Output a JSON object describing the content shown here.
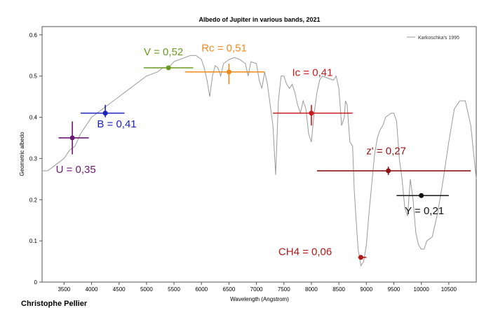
{
  "chart_data": {
    "type": "line",
    "title": "Albedo of Jupiter in various bands, 2021",
    "xlabel": "Wavelength (Angstrom)",
    "ylabel": "Geometric albedo",
    "xlim": [
      3100,
      11000
    ],
    "ylim": [
      0,
      0.62
    ],
    "xticks": [
      3500,
      4000,
      4500,
      5000,
      5500,
      6000,
      6500,
      7000,
      7500,
      8000,
      8500,
      9000,
      9500,
      10000,
      10500
    ],
    "yticks": [
      0,
      0.1,
      0.2,
      0.3,
      0.4,
      0.5,
      0.6
    ],
    "grid": false,
    "legend_position": "top-right",
    "series": [
      {
        "name": "Karkoschka's 1995",
        "color": "#9a9a9a",
        "x": [
          3100,
          3200,
          3300,
          3400,
          3500,
          3600,
          3700,
          3800,
          3900,
          4000,
          4100,
          4200,
          4300,
          4400,
          4500,
          4600,
          4700,
          4800,
          4900,
          5000,
          5100,
          5200,
          5300,
          5400,
          5500,
          5600,
          5700,
          5800,
          5900,
          6000,
          6050,
          6100,
          6150,
          6200,
          6250,
          6300,
          6350,
          6400,
          6500,
          6600,
          6700,
          6800,
          6850,
          6900,
          7000,
          7050,
          7100,
          7150,
          7200,
          7250,
          7300,
          7350,
          7400,
          7450,
          7500,
          7550,
          7600,
          7650,
          7700,
          7750,
          7800,
          7850,
          7900,
          7950,
          8000,
          8050,
          8100,
          8150,
          8200,
          8300,
          8400,
          8450,
          8500,
          8550,
          8600,
          8620,
          8650,
          8700,
          8750,
          8780,
          8800,
          8850,
          8900,
          8950,
          9000,
          9050,
          9100,
          9150,
          9200,
          9250,
          9300,
          9350,
          9400,
          9450,
          9500,
          9550,
          9600,
          9650,
          9700,
          9750,
          9800,
          9850,
          9900,
          9950,
          10000,
          10050,
          10100,
          10200,
          10300,
          10400,
          10500,
          10600,
          10700,
          10800,
          10900,
          11000
        ],
        "y": [
          0.27,
          0.27,
          0.28,
          0.29,
          0.3,
          0.32,
          0.33,
          0.36,
          0.38,
          0.4,
          0.41,
          0.42,
          0.43,
          0.44,
          0.45,
          0.46,
          0.47,
          0.48,
          0.49,
          0.5,
          0.505,
          0.51,
          0.52,
          0.52,
          0.535,
          0.54,
          0.545,
          0.55,
          0.55,
          0.54,
          0.52,
          0.49,
          0.45,
          0.5,
          0.525,
          0.52,
          0.5,
          0.53,
          0.54,
          0.545,
          0.54,
          0.53,
          0.5,
          0.535,
          0.53,
          0.49,
          0.47,
          0.51,
          0.48,
          0.43,
          0.38,
          0.26,
          0.44,
          0.5,
          0.5,
          0.48,
          0.47,
          0.48,
          0.46,
          0.43,
          0.41,
          0.44,
          0.42,
          0.36,
          0.34,
          0.41,
          0.46,
          0.49,
          0.5,
          0.495,
          0.49,
          0.5,
          0.47,
          0.38,
          0.4,
          0.44,
          0.43,
          0.34,
          0.33,
          0.22,
          0.18,
          0.08,
          0.04,
          0.05,
          0.09,
          0.17,
          0.24,
          0.31,
          0.35,
          0.37,
          0.38,
          0.4,
          0.405,
          0.41,
          0.41,
          0.39,
          0.3,
          0.25,
          0.18,
          0.16,
          0.25,
          0.2,
          0.12,
          0.09,
          0.08,
          0.08,
          0.1,
          0.11,
          0.17,
          0.25,
          0.34,
          0.42,
          0.44,
          0.44,
          0.38,
          0.25
        ]
      }
    ],
    "points": [
      {
        "label": "U = 0,35",
        "x": 3650,
        "y": 0.35,
        "xmin": 3400,
        "xmax": 3950,
        "ymin": 0.31,
        "ymax": 0.39,
        "color": "#6b1870"
      },
      {
        "label": "B = 0,41",
        "x": 4250,
        "y": 0.41,
        "xmin": 3800,
        "xmax": 4600,
        "ymin": 0.4,
        "ymax": 0.43,
        "color": "#1a22c0"
      },
      {
        "label": "V = 0,52",
        "x": 5400,
        "y": 0.52,
        "xmin": 4950,
        "xmax": 5850,
        "ymin": 0.515,
        "ymax": 0.525,
        "color": "#6a9a22"
      },
      {
        "label": "Rc = 0,51",
        "x": 6500,
        "y": 0.51,
        "xmin": 5700,
        "xmax": 7150,
        "ymin": 0.48,
        "ymax": 0.53,
        "color": "#f08a1a"
      },
      {
        "label": "Ic = 0,41",
        "x": 8000,
        "y": 0.41,
        "xmin": 7300,
        "xmax": 8750,
        "ymin": 0.38,
        "ymax": 0.43,
        "color": "#cc1a1a"
      },
      {
        "label": "z' = 0,27",
        "x": 9400,
        "y": 0.27,
        "xmin": 8100,
        "xmax": 10900,
        "ymin": 0.26,
        "ymax": 0.28,
        "color": "#8c1515"
      },
      {
        "label": "Y = 0,21",
        "x": 10000,
        "y": 0.21,
        "xmin": 9550,
        "xmax": 10500,
        "ymin": 0.21,
        "ymax": 0.21,
        "color": "#111111"
      },
      {
        "label": "CH4 = 0,06",
        "x": 8900,
        "y": 0.06,
        "xmin": 8850,
        "xmax": 9000,
        "ymin": 0.06,
        "ymax": 0.06,
        "color": "#b01818"
      }
    ]
  },
  "author": "Christophe Pellier"
}
